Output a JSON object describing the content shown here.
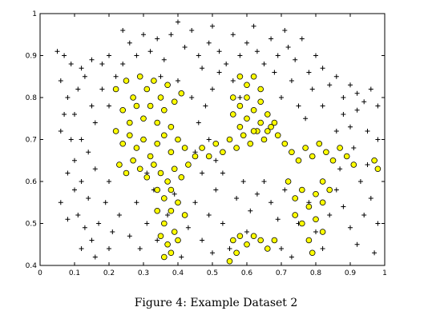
{
  "caption": "Figure 4: Example Dataset 2",
  "chart_data": {
    "type": "scatter",
    "xlim": [
      0,
      1
    ],
    "ylim": [
      0.4,
      1
    ],
    "x_ticks": [
      "0",
      "0.1",
      "0.2",
      "0.3",
      "0.4",
      "0.5",
      "0.6",
      "0.7",
      "0.8",
      "0.9",
      "1"
    ],
    "y_ticks": [
      "0.4",
      "0.5",
      "0.6",
      "0.7",
      "0.8",
      "0.9",
      "1"
    ],
    "grid": false,
    "series": [
      {
        "marker": "plus",
        "color": "#000000",
        "points": [
          [
            0.05,
            0.91
          ],
          [
            0.07,
            0.9
          ],
          [
            0.09,
            0.88
          ],
          [
            0.12,
            0.87
          ],
          [
            0.15,
            0.89
          ],
          [
            0.18,
            0.88
          ],
          [
            0.2,
            0.9
          ],
          [
            0.24,
            0.88
          ],
          [
            0.26,
            0.93
          ],
          [
            0.28,
            0.9
          ],
          [
            0.3,
            0.95
          ],
          [
            0.32,
            0.91
          ],
          [
            0.34,
            0.94
          ],
          [
            0.36,
            0.89
          ],
          [
            0.38,
            0.95
          ],
          [
            0.4,
            0.98
          ],
          [
            0.42,
            0.92
          ],
          [
            0.44,
            0.96
          ],
          [
            0.46,
            0.9
          ],
          [
            0.47,
            0.87
          ],
          [
            0.49,
            0.93
          ],
          [
            0.5,
            0.97
          ],
          [
            0.52,
            0.91
          ],
          [
            0.54,
            0.88
          ],
          [
            0.56,
            0.95
          ],
          [
            0.58,
            0.9
          ],
          [
            0.6,
            0.93
          ],
          [
            0.62,
            0.97
          ],
          [
            0.63,
            0.91
          ],
          [
            0.65,
            0.88
          ],
          [
            0.67,
            0.94
          ],
          [
            0.69,
            0.9
          ],
          [
            0.71,
            0.96
          ],
          [
            0.72,
            0.92
          ],
          [
            0.74,
            0.89
          ],
          [
            0.76,
            0.94
          ],
          [
            0.78,
            0.86
          ],
          [
            0.8,
            0.9
          ],
          [
            0.82,
            0.87
          ],
          [
            0.84,
            0.83
          ],
          [
            0.86,
            0.85
          ],
          [
            0.88,
            0.8
          ],
          [
            0.9,
            0.83
          ],
          [
            0.92,
            0.81
          ],
          [
            0.94,
            0.79
          ],
          [
            0.96,
            0.82
          ],
          [
            0.98,
            0.78
          ],
          [
            0.06,
            0.84
          ],
          [
            0.08,
            0.8
          ],
          [
            0.1,
            0.76
          ],
          [
            0.11,
            0.82
          ],
          [
            0.13,
            0.85
          ],
          [
            0.15,
            0.78
          ],
          [
            0.16,
            0.74
          ],
          [
            0.06,
            0.72
          ],
          [
            0.07,
            0.76
          ],
          [
            0.09,
            0.7
          ],
          [
            0.1,
            0.65
          ],
          [
            0.12,
            0.7
          ],
          [
            0.14,
            0.67
          ],
          [
            0.16,
            0.63
          ],
          [
            0.08,
            0.62
          ],
          [
            0.1,
            0.58
          ],
          [
            0.12,
            0.6
          ],
          [
            0.14,
            0.56
          ],
          [
            0.06,
            0.55
          ],
          [
            0.08,
            0.51
          ],
          [
            0.11,
            0.52
          ],
          [
            0.13,
            0.49
          ],
          [
            0.15,
            0.46
          ],
          [
            0.17,
            0.5
          ],
          [
            0.19,
            0.55
          ],
          [
            0.2,
            0.6
          ],
          [
            0.21,
            0.48
          ],
          [
            0.12,
            0.44
          ],
          [
            0.16,
            0.42
          ],
          [
            0.2,
            0.44
          ],
          [
            0.23,
            0.52
          ],
          [
            0.26,
            0.47
          ],
          [
            0.28,
            0.55
          ],
          [
            0.29,
            0.44
          ],
          [
            0.31,
            0.5
          ],
          [
            0.33,
            0.58
          ],
          [
            0.31,
            0.62
          ],
          [
            0.34,
            0.46
          ],
          [
            0.37,
            0.52
          ],
          [
            0.39,
            0.57
          ],
          [
            0.41,
            0.42
          ],
          [
            0.43,
            0.49
          ],
          [
            0.45,
            0.55
          ],
          [
            0.47,
            0.46
          ],
          [
            0.49,
            0.52
          ],
          [
            0.51,
            0.58
          ],
          [
            0.53,
            0.5
          ],
          [
            0.5,
            0.43
          ],
          [
            0.55,
            0.44
          ],
          [
            0.57,
            0.56
          ],
          [
            0.59,
            0.6
          ],
          [
            0.61,
            0.53
          ],
          [
            0.63,
            0.57
          ],
          [
            0.6,
            0.48
          ],
          [
            0.65,
            0.6
          ],
          [
            0.67,
            0.55
          ],
          [
            0.69,
            0.51
          ],
          [
            0.71,
            0.58
          ],
          [
            0.7,
            0.44
          ],
          [
            0.73,
            0.42
          ],
          [
            0.75,
            0.5
          ],
          [
            0.78,
            0.55
          ],
          [
            0.8,
            0.48
          ],
          [
            0.82,
            0.44
          ],
          [
            0.84,
            0.52
          ],
          [
            0.86,
            0.58
          ],
          [
            0.88,
            0.54
          ],
          [
            0.9,
            0.49
          ],
          [
            0.92,
            0.45
          ],
          [
            0.94,
            0.52
          ],
          [
            0.96,
            0.56
          ],
          [
            0.98,
            0.5
          ],
          [
            0.97,
            0.43
          ],
          [
            0.93,
            0.6
          ],
          [
            0.95,
            0.64
          ],
          [
            0.91,
            0.68
          ],
          [
            0.87,
            0.63
          ],
          [
            0.86,
            0.72
          ],
          [
            0.88,
            0.76
          ],
          [
            0.9,
            0.73
          ],
          [
            0.92,
            0.77
          ],
          [
            0.95,
            0.72
          ],
          [
            0.98,
            0.7
          ],
          [
            0.82,
            0.78
          ],
          [
            0.79,
            0.82
          ],
          [
            0.77,
            0.75
          ],
          [
            0.75,
            0.78
          ],
          [
            0.73,
            0.84
          ],
          [
            0.7,
            0.8
          ],
          [
            0.68,
            0.86
          ],
          [
            0.24,
            0.96
          ],
          [
            0.35,
            0.85
          ],
          [
            0.4,
            0.84
          ],
          [
            0.44,
            0.8
          ],
          [
            0.46,
            0.74
          ],
          [
            0.48,
            0.78
          ],
          [
            0.5,
            0.82
          ],
          [
            0.52,
            0.86
          ],
          [
            0.49,
            0.7
          ],
          [
            0.51,
            0.65
          ],
          [
            0.53,
            0.62
          ],
          [
            0.47,
            0.62
          ],
          [
            0.45,
            0.67
          ],
          [
            0.18,
            0.82
          ],
          [
            0.2,
            0.78
          ],
          [
            0.22,
            0.85
          ],
          [
            0.56,
            0.84
          ],
          [
            0.58,
            0.8
          ]
        ]
      },
      {
        "marker": "circle",
        "color": "#ffff00",
        "points": [
          [
            0.22,
            0.82
          ],
          [
            0.25,
            0.84
          ],
          [
            0.27,
            0.8
          ],
          [
            0.29,
            0.85
          ],
          [
            0.31,
            0.82
          ],
          [
            0.33,
            0.84
          ],
          [
            0.35,
            0.8
          ],
          [
            0.37,
            0.83
          ],
          [
            0.39,
            0.79
          ],
          [
            0.41,
            0.81
          ],
          [
            0.24,
            0.77
          ],
          [
            0.26,
            0.74
          ],
          [
            0.28,
            0.78
          ],
          [
            0.3,
            0.75
          ],
          [
            0.32,
            0.78
          ],
          [
            0.34,
            0.74
          ],
          [
            0.36,
            0.77
          ],
          [
            0.38,
            0.73
          ],
          [
            0.22,
            0.72
          ],
          [
            0.24,
            0.69
          ],
          [
            0.26,
            0.71
          ],
          [
            0.28,
            0.68
          ],
          [
            0.3,
            0.7
          ],
          [
            0.32,
            0.66
          ],
          [
            0.34,
            0.69
          ],
          [
            0.36,
            0.71
          ],
          [
            0.38,
            0.67
          ],
          [
            0.4,
            0.7
          ],
          [
            0.42,
            0.68
          ],
          [
            0.23,
            0.64
          ],
          [
            0.25,
            0.62
          ],
          [
            0.27,
            0.65
          ],
          [
            0.29,
            0.63
          ],
          [
            0.31,
            0.61
          ],
          [
            0.33,
            0.64
          ],
          [
            0.35,
            0.62
          ],
          [
            0.37,
            0.6
          ],
          [
            0.39,
            0.63
          ],
          [
            0.41,
            0.61
          ],
          [
            0.43,
            0.64
          ],
          [
            0.45,
            0.66
          ],
          [
            0.47,
            0.68
          ],
          [
            0.49,
            0.66
          ],
          [
            0.51,
            0.69
          ],
          [
            0.53,
            0.67
          ],
          [
            0.55,
            0.7
          ],
          [
            0.57,
            0.68
          ],
          [
            0.59,
            0.71
          ],
          [
            0.61,
            0.69
          ],
          [
            0.63,
            0.72
          ],
          [
            0.65,
            0.7
          ],
          [
            0.67,
            0.73
          ],
          [
            0.69,
            0.71
          ],
          [
            0.71,
            0.69
          ],
          [
            0.73,
            0.67
          ],
          [
            0.75,
            0.65
          ],
          [
            0.77,
            0.68
          ],
          [
            0.79,
            0.66
          ],
          [
            0.81,
            0.69
          ],
          [
            0.83,
            0.67
          ],
          [
            0.85,
            0.65
          ],
          [
            0.87,
            0.68
          ],
          [
            0.89,
            0.66
          ],
          [
            0.91,
            0.64
          ],
          [
            0.97,
            0.65
          ],
          [
            0.98,
            0.63
          ],
          [
            0.34,
            0.58
          ],
          [
            0.36,
            0.56
          ],
          [
            0.38,
            0.58
          ],
          [
            0.34,
            0.53
          ],
          [
            0.36,
            0.5
          ],
          [
            0.38,
            0.53
          ],
          [
            0.35,
            0.47
          ],
          [
            0.37,
            0.45
          ],
          [
            0.39,
            0.48
          ],
          [
            0.36,
            0.42
          ],
          [
            0.38,
            0.43
          ],
          [
            0.4,
            0.46
          ],
          [
            0.4,
            0.55
          ],
          [
            0.42,
            0.52
          ],
          [
            0.56,
            0.46
          ],
          [
            0.58,
            0.47
          ],
          [
            0.6,
            0.45
          ],
          [
            0.62,
            0.47
          ],
          [
            0.64,
            0.46
          ],
          [
            0.66,
            0.44
          ],
          [
            0.68,
            0.46
          ],
          [
            0.57,
            0.43
          ],
          [
            0.55,
            0.41
          ],
          [
            0.58,
            0.85
          ],
          [
            0.6,
            0.83
          ],
          [
            0.62,
            0.85
          ],
          [
            0.64,
            0.82
          ],
          [
            0.56,
            0.8
          ],
          [
            0.58,
            0.78
          ],
          [
            0.6,
            0.8
          ],
          [
            0.62,
            0.77
          ],
          [
            0.64,
            0.79
          ],
          [
            0.66,
            0.76
          ],
          [
            0.68,
            0.74
          ],
          [
            0.56,
            0.76
          ],
          [
            0.58,
            0.73
          ],
          [
            0.6,
            0.75
          ],
          [
            0.62,
            0.72
          ],
          [
            0.64,
            0.74
          ],
          [
            0.66,
            0.72
          ],
          [
            0.72,
            0.6
          ],
          [
            0.74,
            0.56
          ],
          [
            0.76,
            0.58
          ],
          [
            0.74,
            0.52
          ],
          [
            0.76,
            0.5
          ],
          [
            0.78,
            0.54
          ],
          [
            0.8,
            0.57
          ],
          [
            0.82,
            0.55
          ],
          [
            0.8,
            0.51
          ],
          [
            0.82,
            0.48
          ],
          [
            0.78,
            0.46
          ],
          [
            0.79,
            0.43
          ],
          [
            0.82,
            0.6
          ],
          [
            0.84,
            0.58
          ]
        ]
      }
    ]
  }
}
